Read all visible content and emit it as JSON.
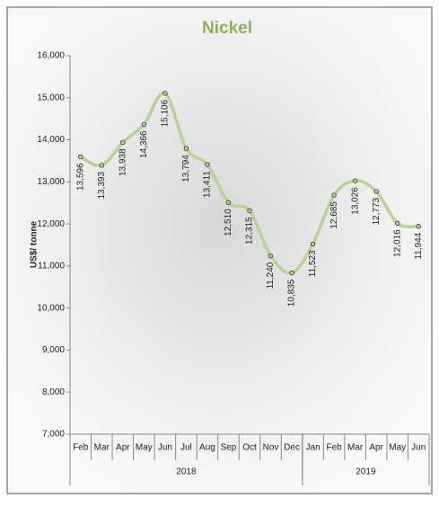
{
  "chart_data": {
    "type": "line",
    "title": "Nickel",
    "y_label": "US$/ tonne",
    "categories": [
      "Feb",
      "Mar",
      "Apr",
      "May",
      "Jun",
      "Jul",
      "Aug",
      "Sep",
      "Oct",
      "Nov",
      "Dec",
      "Jan",
      "Feb",
      "Mar",
      "Apr",
      "May",
      "Jun"
    ],
    "x_groups": [
      {
        "label": "2018",
        "count": 11
      },
      {
        "label": "2019",
        "count": 6
      }
    ],
    "values": [
      13596,
      13393,
      13938,
      14366,
      15106,
      13794,
      13411,
      12510,
      12315,
      11240,
      10835,
      11523,
      12685,
      13026,
      12773,
      12016,
      11944
    ],
    "value_labels": [
      "13,596",
      "13,393",
      "13,938",
      "14,366",
      "15,106",
      "13,794",
      "13,411",
      "12,510",
      "12,315",
      "11,240",
      "10,835",
      "11,523",
      "12,685",
      "13,026",
      "12,773",
      "12,016",
      "11,944"
    ],
    "color": "#b9d38f",
    "title_color": "#8db356",
    "ylim": [
      7000,
      16000
    ],
    "yticks": [
      {
        "value": 7000,
        "label": "7,000"
      },
      {
        "value": 8000,
        "label": "8,000"
      },
      {
        "value": 9000,
        "label": "9,000"
      },
      {
        "value": 10000,
        "label": "10,000"
      },
      {
        "value": 11000,
        "label": "11,000"
      },
      {
        "value": 12000,
        "label": "12,000"
      },
      {
        "value": 13000,
        "label": "13,000"
      },
      {
        "value": 14000,
        "label": "14,000"
      },
      {
        "value": 15000,
        "label": "15,000"
      },
      {
        "value": 16000,
        "label": "16,000"
      }
    ]
  }
}
